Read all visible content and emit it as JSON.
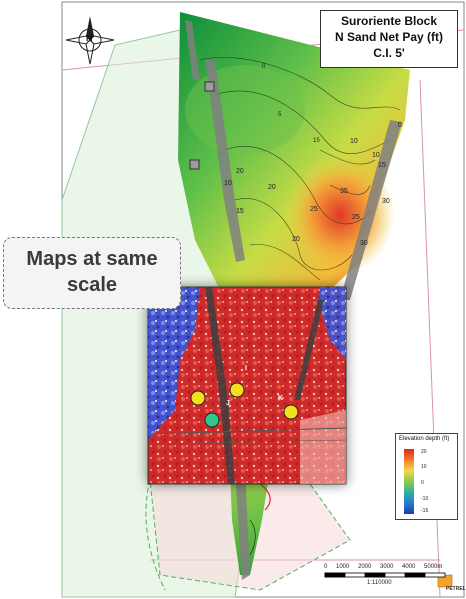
{
  "title": {
    "line1": "Suroriente Block",
    "line2": "N Sand Net Pay (ft)",
    "line3": "C.I. 5'"
  },
  "callout": {
    "line1": "Maps at same",
    "line2": "scale"
  },
  "compass": {
    "letter": "N",
    "icon": "north-arrow-icon"
  },
  "contour_labels": [
    "0",
    "5",
    "10",
    "15",
    "20",
    "25",
    "30",
    "35",
    "10",
    "15",
    "20",
    "25",
    "20",
    "15",
    "10",
    "30",
    "0"
  ],
  "wells": [
    {
      "label": "",
      "color": "#f5dd1f"
    },
    {
      "label": "",
      "color": "#f5dd1f"
    },
    {
      "label": "J",
      "color": "#2fc98f"
    },
    {
      "label": "K",
      "color": "#f5dd1f"
    },
    {
      "label": "I",
      "color": "#ffffff"
    }
  ],
  "legend": {
    "title": "Elevation depth (ft)",
    "ticks": [
      "20",
      "10",
      "0",
      "-10",
      "-15"
    ]
  },
  "scale_bar": {
    "labels": [
      "0",
      "1000",
      "2000",
      "3000",
      "4000",
      "5000m"
    ],
    "ratio": "1:110000"
  },
  "logo_text": "PETREL",
  "colors": {
    "high": "#d7261e",
    "mid": "#f6d84a",
    "low": "#2e9e44",
    "seismic_red": "#d32a2a",
    "seismic_blue": "#2a3fd1"
  }
}
